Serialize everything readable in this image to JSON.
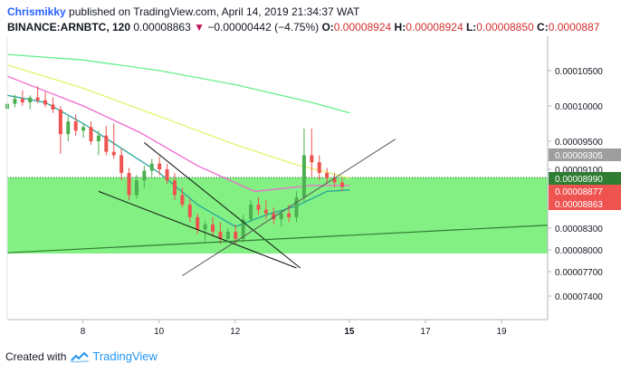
{
  "header": {
    "user": "Chrismikky",
    "published_text": "published on TradingView.com, April 14, 2019 21:34:37 WAT",
    "symbol": "BINANCE:ARNBTC, 120",
    "price": "0.00008863",
    "change_arrow": "▼",
    "change": "−0.00000442 (−4.75%)",
    "open_label": "O:",
    "open": "0.00008924",
    "high_label": "H:",
    "high": "0.00008924",
    "low_label": "L:",
    "low": "0.00008850",
    "close_label": "C:",
    "close": "0.0000887"
  },
  "footer": {
    "created_with": "Created with",
    "brand": "TradingView"
  },
  "colors": {
    "up_candle": "#4caf50",
    "down_candle": "#ef5350",
    "zone_fill": "#7bef7b",
    "ma_green": "#66f08a",
    "ma_yellow": "#e6f26a",
    "ma_pink": "#f06ad2",
    "ma_teal": "#26a69a",
    "tag_gray": "#9e9e9e",
    "tag_green": "#2e7d32",
    "tag_red": "#ef5350"
  },
  "chart_data": {
    "type": "candlestick",
    "x_ticks": [
      "8",
      "10",
      "12",
      "15",
      "17",
      "19"
    ],
    "y_ticks": [
      "0.00010500",
      "0.00010000",
      "0.00009500",
      "0.00009100",
      "0.00008300",
      "0.00008000",
      "0.00007700",
      "0.00007400"
    ],
    "y_range": [
      7.15e-05,
      0.000109
    ],
    "x_range_days": [
      6.0,
      20.2
    ],
    "price_tags": [
      {
        "label": "0.00009305",
        "value": 9.305e-05,
        "color": "gray"
      },
      {
        "label": "0.00008990",
        "value": 8.99e-05,
        "color": "green"
      },
      {
        "label": "0.00008877",
        "value": 8.877e-05,
        "color": "red"
      },
      {
        "label": "0.00008863",
        "value": 8.863e-05,
        "color": "red"
      }
    ],
    "dotted_line": 8.99e-05,
    "support_zone": [
      7.95e-05,
      8.99e-05
    ],
    "trendlines": [
      {
        "from": [
          9.6,
          9.48e-05
        ],
        "to": [
          13.7,
          7.75e-05
        ]
      },
      {
        "from": [
          8.4,
          8.8e-05
        ],
        "to": [
          13.6,
          7.75e-05
        ]
      },
      {
        "from": [
          10.6,
          7.65e-05
        ],
        "to": [
          16.2,
          9.53e-05
        ]
      },
      {
        "from": [
          6.0,
          7.96e-05
        ],
        "to": [
          20.2,
          8.34e-05
        ]
      }
    ],
    "candles": [
      [
        6.0,
        9.96e-05,
        0.0001008,
        9.85e-05,
        0.0001003
      ],
      [
        6.2,
        0.0001003,
        0.0001016,
        9.98e-05,
        0.000101
      ],
      [
        6.4,
        0.000101,
        0.0001022,
        0.0001,
        0.0001005
      ],
      [
        6.6,
        0.0001005,
        0.0001015,
        9.95e-05,
        0.0001012
      ],
      [
        6.8,
        0.0001012,
        0.0001028,
        0.0001004,
        0.0001008
      ],
      [
        7.0,
        0.0001008,
        0.000102,
        9.98e-05,
        0.0001002
      ],
      [
        7.2,
        0.0001002,
        0.0001012,
        9.9e-05,
        9.95e-05
      ],
      [
        7.4,
        9.95e-05,
        0.0001,
        9.32e-05,
        9.6e-05
      ],
      [
        7.6,
        9.6e-05,
        9.85e-05,
        9.5e-05,
        9.78e-05
      ],
      [
        7.8,
        9.78e-05,
        9.88e-05,
        9.58e-05,
        9.65e-05
      ],
      [
        8.0,
        9.65e-05,
        9.75e-05,
        9.55e-05,
        9.7e-05
      ],
      [
        8.2,
        9.7e-05,
        9.78e-05,
        9.45e-05,
        9.5e-05
      ],
      [
        8.4,
        9.5e-05,
        9.65e-05,
        9.3e-05,
        9.58e-05
      ],
      [
        8.6,
        9.58e-05,
        9.72e-05,
        9.3e-05,
        9.35e-05
      ],
      [
        8.8,
        9.35e-05,
        9.75e-05,
        9.25e-05,
        9.3e-05
      ],
      [
        9.0,
        9.3e-05,
        9.4e-05,
        8.95e-05,
        9.05e-05
      ],
      [
        9.2,
        9.05e-05,
        9.12e-05,
        8.68e-05,
        8.75e-05
      ],
      [
        9.4,
        8.75e-05,
        9.02e-05,
        8.7e-05,
        8.95e-05
      ],
      [
        9.6,
        8.95e-05,
        9.15e-05,
        8.85e-05,
        9.08e-05
      ],
      [
        9.8,
        9.08e-05,
        9.25e-05,
        9e-05,
        9.18e-05
      ],
      [
        10.0,
        9.18e-05,
        9.28e-05,
        9.02e-05,
        9.1e-05
      ],
      [
        10.2,
        9.1e-05,
        9.18e-05,
        8.9e-05,
        8.95e-05
      ],
      [
        10.4,
        8.95e-05,
        9.05e-05,
        8.68e-05,
        8.75e-05
      ],
      [
        10.6,
        8.75e-05,
        8.85e-05,
        8.58e-05,
        8.62e-05
      ],
      [
        10.8,
        8.62e-05,
        8.7e-05,
        8.38e-05,
        8.45e-05
      ],
      [
        11.0,
        8.45e-05,
        8.5e-05,
        8.22e-05,
        8.28e-05
      ],
      [
        11.2,
        8.28e-05,
        8.4e-05,
        8.12e-05,
        8.35e-05
      ],
      [
        11.4,
        8.35e-05,
        8.45e-05,
        8.18e-05,
        8.25e-05
      ],
      [
        11.6,
        8.25e-05,
        8.38e-05,
        8.08e-05,
        8.15e-05
      ],
      [
        11.8,
        8.15e-05,
        8.3e-05,
        8.1e-05,
        8.25e-05
      ],
      [
        12.0,
        8.25e-05,
        8.35e-05,
        8.08e-05,
        8.15e-05
      ],
      [
        12.2,
        8.15e-05,
        8.48e-05,
        8.1e-05,
        8.42e-05
      ],
      [
        12.4,
        8.42e-05,
        8.68e-05,
        8.38e-05,
        8.62e-05
      ],
      [
        12.6,
        8.62e-05,
        8.72e-05,
        8.48e-05,
        8.55e-05
      ],
      [
        12.8,
        8.55e-05,
        8.68e-05,
        8.42e-05,
        8.5e-05
      ],
      [
        13.0,
        8.5e-05,
        8.58e-05,
        8.35e-05,
        8.42e-05
      ],
      [
        13.2,
        8.42e-05,
        8.55e-05,
        8.32e-05,
        8.5e-05
      ],
      [
        13.4,
        8.5e-05,
        8.62e-05,
        8.38e-05,
        8.45e-05
      ],
      [
        13.6,
        8.45e-05,
        8.8e-05,
        8.38e-05,
        8.72e-05
      ],
      [
        13.8,
        8.72e-05,
        9.68e-05,
        8.65e-05,
        9.3e-05
      ],
      [
        14.0,
        9.3e-05,
        9.68e-05,
        9e-05,
        9.2e-05
      ],
      [
        14.2,
        9.2e-05,
        9.3e-05,
        8.95e-05,
        9.05e-05
      ],
      [
        14.4,
        9.05e-05,
        9.12e-05,
        8.9e-05,
        8.98e-05
      ],
      [
        14.6,
        8.98e-05,
        9.05e-05,
        8.85e-05,
        8.92e-05
      ],
      [
        14.8,
        8.92e-05,
        8.98e-05,
        8.8e-05,
        8.86e-05
      ]
    ],
    "moving_averages": [
      {
        "color": "ma_green",
        "points": [
          [
            6.0,
            0.0001073
          ],
          [
            8.0,
            0.0001065
          ],
          [
            10.0,
            0.000105
          ],
          [
            12.0,
            0.000103
          ],
          [
            14.0,
            0.0001005
          ],
          [
            15.0,
            9.9e-05
          ]
        ]
      },
      {
        "color": "ma_yellow",
        "points": [
          [
            6.0,
            0.0001058
          ],
          [
            8.0,
            0.0001025
          ],
          [
            10.0,
            9.85e-05
          ],
          [
            12.0,
            9.45e-05
          ],
          [
            13.5,
            9.18e-05
          ],
          [
            15.0,
            8.98e-05
          ]
        ]
      },
      {
        "color": "ma_pink",
        "points": [
          [
            6.0,
            0.0001042
          ],
          [
            8.0,
            0.0001
          ],
          [
            9.5,
            9.62e-05
          ],
          [
            11.0,
            9.15e-05
          ],
          [
            12.5,
            8.8e-05
          ],
          [
            14.0,
            8.88e-05
          ],
          [
            15.0,
            8.88e-05
          ]
        ]
      },
      {
        "color": "ma_teal",
        "points": [
          [
            6.0,
            0.0001015
          ],
          [
            7.0,
            0.0001005
          ],
          [
            8.0,
            9.75e-05
          ],
          [
            9.0,
            9.4e-05
          ],
          [
            10.0,
            9.05e-05
          ],
          [
            11.0,
            8.62e-05
          ],
          [
            12.0,
            8.32e-05
          ],
          [
            12.8,
            8.48e-05
          ],
          [
            13.6,
            8.6e-05
          ],
          [
            14.4,
            8.8e-05
          ],
          [
            15.0,
            8.82e-05
          ]
        ]
      }
    ]
  }
}
